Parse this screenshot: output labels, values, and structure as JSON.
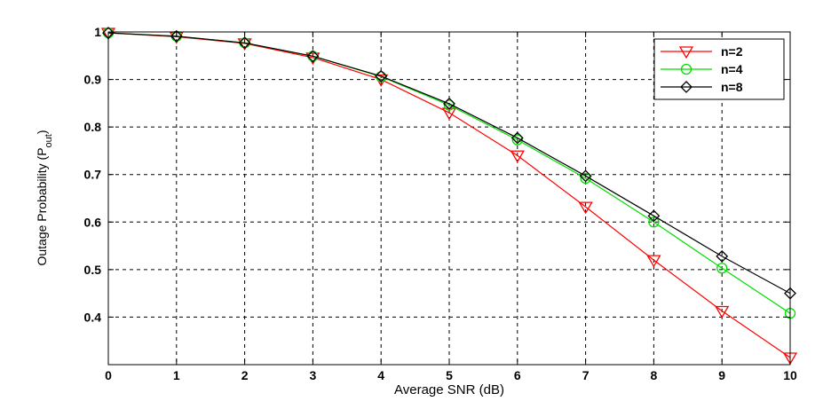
{
  "chart_data": {
    "type": "line",
    "xlabel": "Average SNR (dB)",
    "ylabel": {
      "main": "Outage Probability  (P",
      "sub": "out",
      "close": ")"
    },
    "x": [
      0,
      1,
      2,
      3,
      4,
      5,
      6,
      7,
      8,
      9,
      10
    ],
    "xlim": [
      0,
      10
    ],
    "ylim": [
      0.3,
      1.0
    ],
    "xticks": [
      "0",
      "1",
      "2",
      "3",
      "4",
      "5",
      "6",
      "7",
      "8",
      "9",
      "10"
    ],
    "yticks": [
      {
        "value": 0.4,
        "label": "0.4"
      },
      {
        "value": 0.5,
        "label": "0.5"
      },
      {
        "value": 0.6,
        "label": "0.6"
      },
      {
        "value": 0.7,
        "label": "0.7"
      },
      {
        "value": 0.8,
        "label": "0.8"
      },
      {
        "value": 0.9,
        "label": "0.9"
      },
      {
        "value": 1.0,
        "label": "1"
      }
    ],
    "grid": true,
    "legend_position": "top-right",
    "series": [
      {
        "name": "n=2",
        "color": "#ff0000",
        "marker": "triangle-down",
        "values": [
          0.998,
          0.99,
          0.976,
          0.946,
          0.9,
          0.83,
          0.74,
          0.632,
          0.52,
          0.413,
          0.315
        ]
      },
      {
        "name": "n=4",
        "color": "#00dd00",
        "marker": "circle",
        "values": [
          0.998,
          0.991,
          0.977,
          0.949,
          0.906,
          0.846,
          0.773,
          0.692,
          0.6,
          0.503,
          0.408
        ]
      },
      {
        "name": "n=8",
        "color": "#000000",
        "marker": "diamond",
        "values": [
          0.998,
          0.991,
          0.977,
          0.949,
          0.907,
          0.849,
          0.777,
          0.697,
          0.613,
          0.528,
          0.45
        ]
      }
    ]
  }
}
